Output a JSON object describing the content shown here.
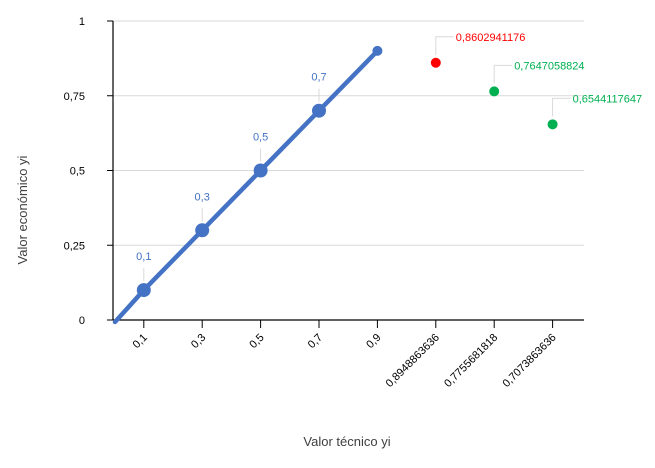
{
  "chart_data": {
    "type": "scatter",
    "title": "",
    "xlabel": "Valor técnico yi",
    "ylabel": "Valor económico yi",
    "categories": [
      "0,1",
      "0,3",
      "0,5",
      "0,7",
      "0,9",
      "0,8948863636",
      "0,7755681818",
      "0,7073863636"
    ],
    "y_ticks": [
      "0",
      "0,25",
      "0,5",
      "0,75",
      "1"
    ],
    "ylim": [
      0,
      1
    ],
    "grid": "horizontal",
    "series": [
      {
        "kind": "line",
        "color": "#4472c4",
        "points": [
          {
            "x": "0,1",
            "y": 0.1,
            "label": "0,1"
          },
          {
            "x": "0,3",
            "y": 0.3,
            "label": "0,3"
          },
          {
            "x": "0,5",
            "y": 0.5,
            "label": "0,5"
          },
          {
            "x": "0,7",
            "y": 0.7,
            "label": "0,7"
          },
          {
            "x": "0,9",
            "y": 0.9,
            "label": ""
          }
        ]
      },
      {
        "kind": "points",
        "color": "#ff0000",
        "points": [
          {
            "x": "0,8948863636",
            "y": 0.8602941176,
            "label": "0,8602941176"
          }
        ]
      },
      {
        "kind": "points",
        "color": "#00b050",
        "points": [
          {
            "x": "0,7755681818",
            "y": 0.7647058824,
            "label": "0,7647058824"
          },
          {
            "x": "0,7073863636",
            "y": 0.6544117647,
            "label": "0,6544117647"
          }
        ]
      }
    ]
  }
}
